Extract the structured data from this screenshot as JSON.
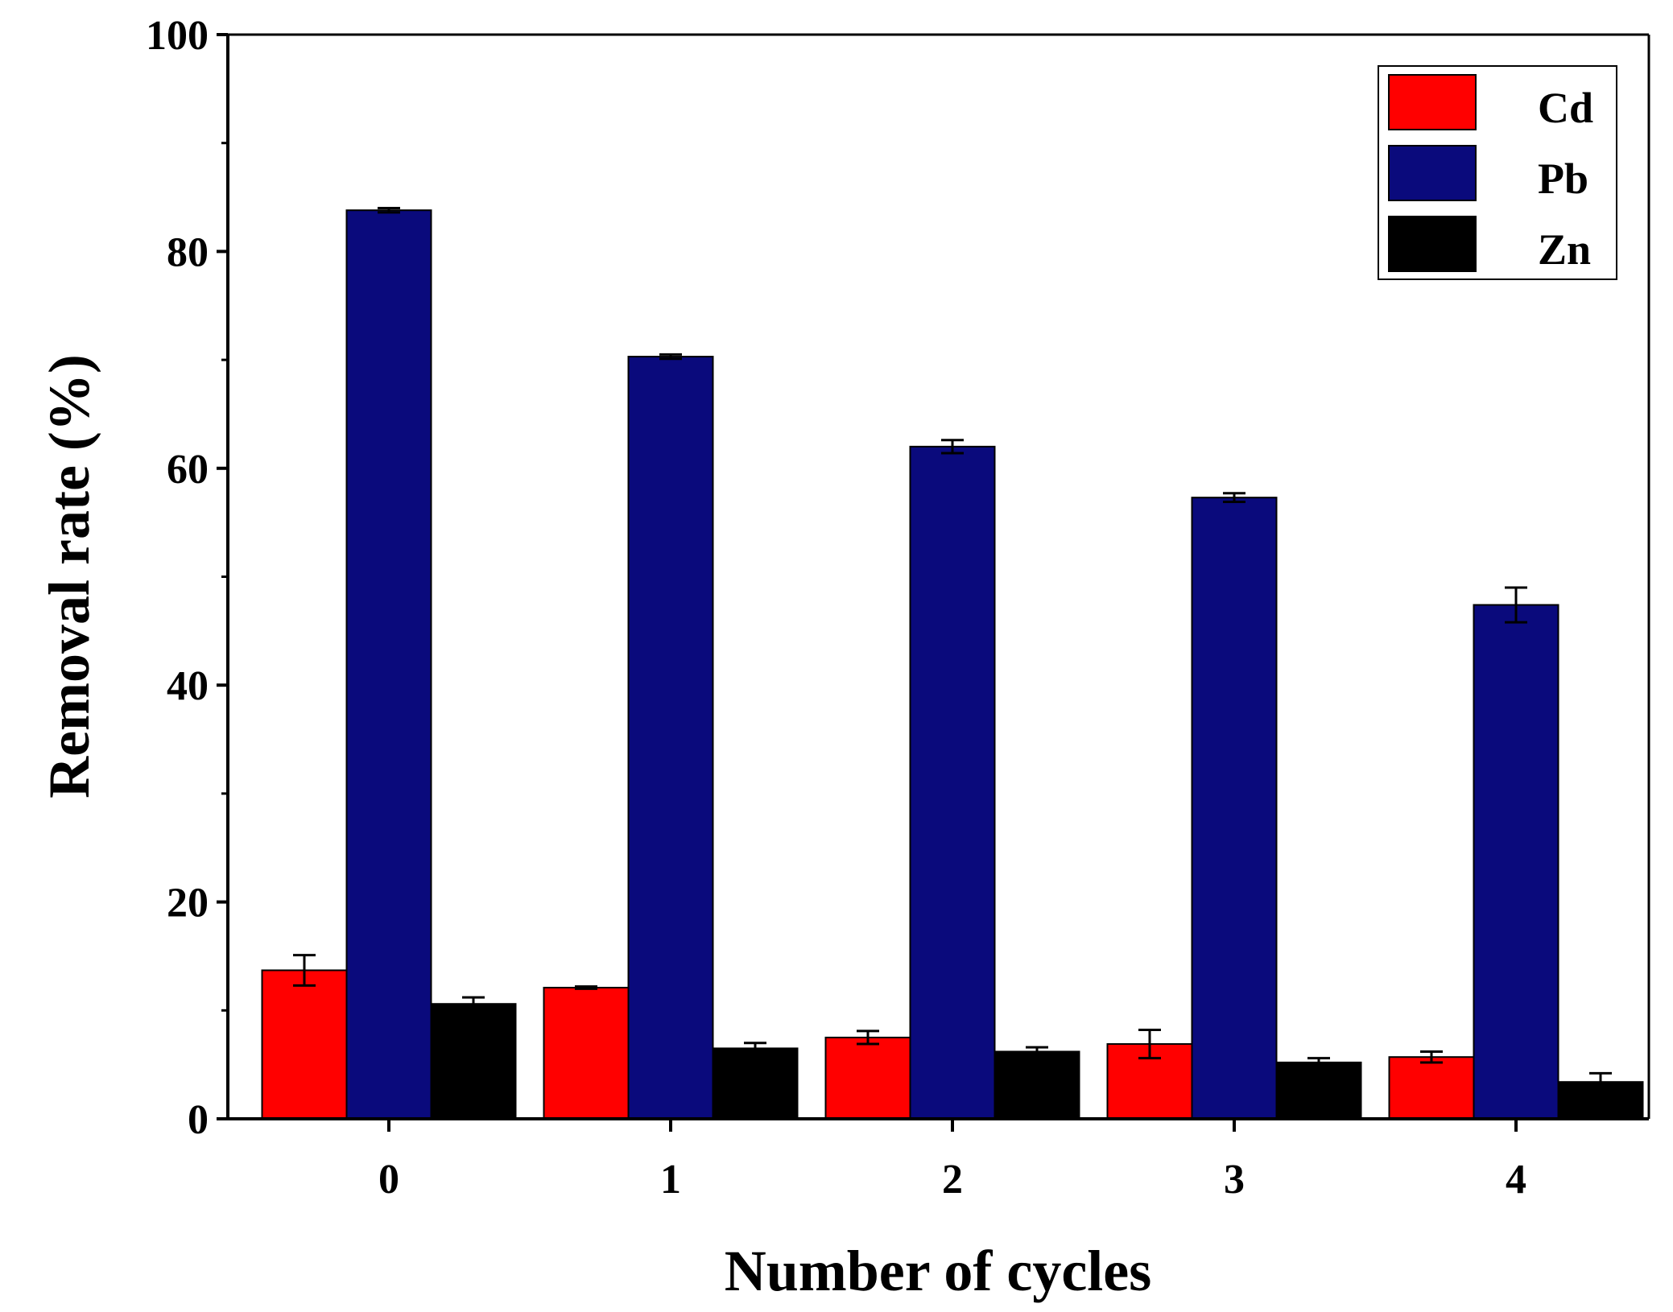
{
  "chart_data": {
    "type": "bar",
    "title": "",
    "xlabel": "Number of cycles",
    "ylabel": "Removal rate (%)",
    "categories": [
      "0",
      "1",
      "2",
      "3",
      "4"
    ],
    "ylim": [
      0,
      100
    ],
    "yticks": [
      "0",
      "20",
      "40",
      "60",
      "80",
      "100"
    ],
    "grid": false,
    "legend_position": "top-right",
    "series": [
      {
        "name": "Cd",
        "color": "#ff0000",
        "values": [
          13.7,
          12.1,
          7.5,
          6.9,
          5.7
        ],
        "errors": [
          1.4,
          0.1,
          0.6,
          1.3,
          0.5
        ]
      },
      {
        "name": "Pb",
        "color": "#0a0a7c",
        "values": [
          83.8,
          70.3,
          62.0,
          57.3,
          47.4
        ],
        "errors": [
          0.2,
          0.2,
          0.6,
          0.4,
          1.6
        ]
      },
      {
        "name": "Zn",
        "color": "#000000",
        "values": [
          10.6,
          6.5,
          6.2,
          5.2,
          3.4
        ],
        "errors": [
          0.6,
          0.5,
          0.4,
          0.4,
          0.8
        ]
      }
    ]
  }
}
